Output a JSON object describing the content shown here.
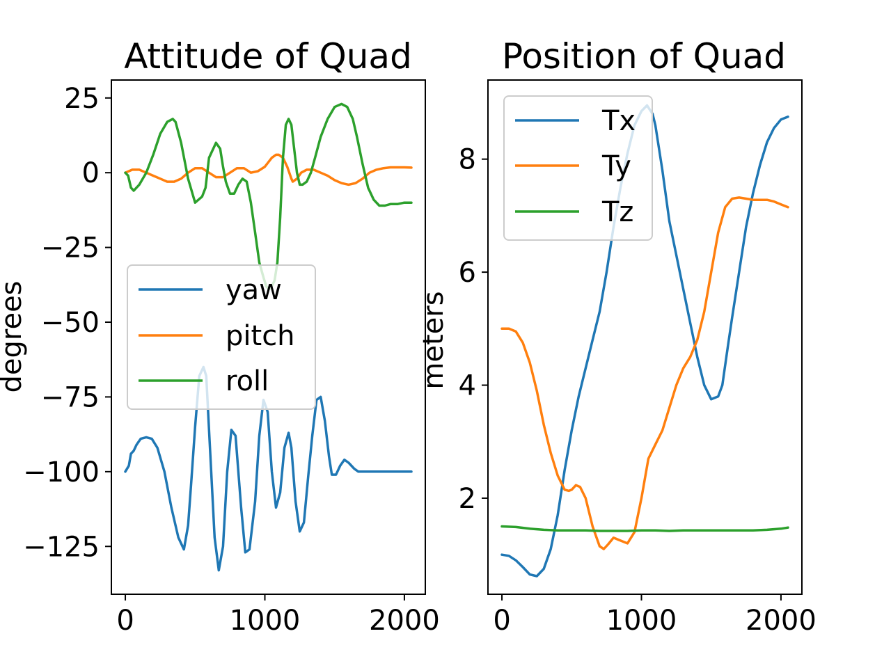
{
  "chart_data": [
    {
      "type": "line",
      "title": "Attitude of Quad",
      "ylabel": "degrees",
      "xlabel": "",
      "xlim": [
        -100,
        2150
      ],
      "ylim": [
        -141,
        31
      ],
      "xticks": [
        0,
        1000,
        2000
      ],
      "yticks": [
        25,
        0,
        -25,
        -50,
        -75,
        -100,
        -125
      ],
      "ytick_labels": [
        "25",
        "0",
        "−25",
        "−50",
        "−75",
        "−100",
        "−125"
      ],
      "legend": "center-left",
      "grid": false,
      "series": [
        {
          "name": "yaw",
          "color": "#1f77b4",
          "x": [
            0,
            25,
            40,
            60,
            80,
            110,
            150,
            190,
            230,
            280,
            330,
            380,
            420,
            450,
            470,
            500,
            530,
            560,
            580,
            610,
            640,
            670,
            700,
            730,
            760,
            790,
            830,
            860,
            890,
            930,
            960,
            990,
            1020,
            1050,
            1080,
            1110,
            1140,
            1170,
            1190,
            1220,
            1250,
            1280,
            1310,
            1340,
            1370,
            1400,
            1430,
            1460,
            1480,
            1510,
            1540,
            1570,
            1600,
            1640,
            1670,
            1700,
            1730,
            1760,
            1790,
            1820,
            1860,
            1900,
            1930,
            1960,
            1990,
            2020,
            2050
          ],
          "y": [
            -100,
            -98,
            -94,
            -93,
            -91,
            -89,
            -88.5,
            -89,
            -92,
            -100,
            -112,
            -122,
            -126,
            -118,
            -105,
            -85,
            -68,
            -65,
            -68,
            -95,
            -122,
            -133,
            -125,
            -100,
            -86,
            -88,
            -112,
            -127,
            -126,
            -110,
            -88,
            -76,
            -80,
            -100,
            -112,
            -107,
            -92,
            -87,
            -92,
            -110,
            -120,
            -117,
            -102,
            -88,
            -76,
            -75,
            -83,
            -95,
            -101,
            -101,
            -98,
            -96,
            -97,
            -99,
            -100,
            -100,
            -100,
            -100,
            -100,
            -100,
            -100,
            -100,
            -100,
            -100,
            -100,
            -100,
            -100
          ]
        },
        {
          "name": "pitch",
          "color": "#ff7f0e",
          "x": [
            0,
            50,
            100,
            150,
            200,
            250,
            300,
            350,
            400,
            450,
            500,
            550,
            600,
            650,
            700,
            750,
            800,
            850,
            900,
            950,
            1000,
            1050,
            1080,
            1100,
            1130,
            1160,
            1190,
            1200,
            1230,
            1260,
            1300,
            1350,
            1400,
            1450,
            1500,
            1550,
            1600,
            1650,
            1700,
            1750,
            1800,
            1850,
            1900,
            1950,
            2000,
            2050
          ],
          "y": [
            0,
            1,
            1,
            0,
            -1,
            -2,
            -3,
            -3,
            -2,
            0,
            1.5,
            1.5,
            0,
            -1.5,
            -1.5,
            0,
            1.5,
            1.5,
            0,
            0.5,
            2,
            5,
            6,
            6,
            5,
            2,
            -2,
            -3,
            -2,
            0,
            1,
            1,
            0,
            -1,
            -2.5,
            -3.5,
            -4,
            -3.5,
            -2,
            0,
            1,
            1.5,
            1.8,
            1.8,
            1.8,
            1.7
          ]
        },
        {
          "name": "roll",
          "color": "#2ca02c",
          "x": [
            0,
            20,
            40,
            60,
            80,
            100,
            150,
            200,
            250,
            300,
            340,
            360,
            400,
            450,
            500,
            550,
            575,
            600,
            650,
            680,
            700,
            720,
            750,
            780,
            810,
            840,
            870,
            900,
            930,
            960,
            990,
            1010,
            1030,
            1050,
            1070,
            1090,
            1110,
            1130,
            1150,
            1170,
            1190,
            1210,
            1230,
            1250,
            1270,
            1300,
            1330,
            1360,
            1400,
            1450,
            1500,
            1550,
            1590,
            1630,
            1660,
            1700,
            1740,
            1780,
            1820,
            1860,
            1900,
            1950,
            2000,
            2050
          ],
          "y": [
            0,
            -1,
            -5,
            -6,
            -5,
            -4,
            0,
            6,
            13,
            17,
            18,
            17,
            10,
            -2,
            -10,
            -8,
            -5,
            5,
            10,
            8,
            2,
            -3,
            -7,
            -7,
            -4,
            -2,
            -3,
            -10,
            -20,
            -30,
            -35,
            -38,
            -39,
            -38,
            -36,
            -30,
            -15,
            5,
            16,
            18,
            16,
            8,
            0,
            -4,
            -4,
            -3,
            0,
            5,
            12,
            18,
            22,
            23,
            22,
            18,
            12,
            3,
            -5,
            -9,
            -11,
            -11,
            -10.5,
            -10.5,
            -10,
            -10
          ]
        }
      ]
    },
    {
      "type": "line",
      "title": "Position of Quad",
      "ylabel": "meters",
      "xlabel": "",
      "xlim": [
        -100,
        2150
      ],
      "ylim": [
        0.3,
        9.4
      ],
      "xticks": [
        0,
        1000,
        2000
      ],
      "yticks": [
        8,
        6,
        4,
        2
      ],
      "ytick_labels": [
        "8",
        "6",
        "4",
        "2"
      ],
      "legend": "top-left",
      "grid": false,
      "series": [
        {
          "name": "Tx",
          "color": "#1f77b4",
          "x": [
            0,
            50,
            100,
            150,
            200,
            250,
            300,
            350,
            400,
            450,
            500,
            550,
            600,
            650,
            700,
            750,
            800,
            850,
            900,
            950,
            1000,
            1040,
            1080,
            1100,
            1150,
            1200,
            1250,
            1300,
            1350,
            1400,
            1450,
            1500,
            1550,
            1580,
            1620,
            1650,
            1700,
            1750,
            1800,
            1850,
            1900,
            1950,
            2000,
            2050
          ],
          "y": [
            1.0,
            0.98,
            0.9,
            0.78,
            0.65,
            0.62,
            0.75,
            1.1,
            1.7,
            2.5,
            3.2,
            3.8,
            4.3,
            4.8,
            5.3,
            6.0,
            6.8,
            7.5,
            8.1,
            8.6,
            8.85,
            8.95,
            8.8,
            8.6,
            7.8,
            6.9,
            6.3,
            5.7,
            5.1,
            4.5,
            4.0,
            3.75,
            3.8,
            4.0,
            4.7,
            5.2,
            6.0,
            6.8,
            7.4,
            7.9,
            8.3,
            8.55,
            8.7,
            8.75
          ]
        },
        {
          "name": "Ty",
          "color": "#ff7f0e",
          "x": [
            0,
            50,
            100,
            150,
            200,
            250,
            300,
            350,
            400,
            450,
            480,
            500,
            530,
            560,
            600,
            650,
            700,
            730,
            760,
            800,
            850,
            900,
            950,
            1000,
            1050,
            1100,
            1150,
            1200,
            1250,
            1300,
            1350,
            1400,
            1450,
            1500,
            1550,
            1600,
            1650,
            1700,
            1750,
            1800,
            1850,
            1900,
            1950,
            2000,
            2050
          ],
          "y": [
            5.0,
            5.0,
            4.95,
            4.75,
            4.4,
            3.9,
            3.3,
            2.8,
            2.4,
            2.15,
            2.13,
            2.15,
            2.23,
            2.2,
            2.0,
            1.5,
            1.15,
            1.1,
            1.18,
            1.3,
            1.25,
            1.2,
            1.4,
            2.0,
            2.7,
            2.95,
            3.2,
            3.6,
            4.0,
            4.3,
            4.5,
            4.8,
            5.3,
            6.0,
            6.7,
            7.15,
            7.3,
            7.32,
            7.3,
            7.28,
            7.28,
            7.28,
            7.25,
            7.2,
            7.15
          ]
        },
        {
          "name": "Tz",
          "color": "#2ca02c",
          "x": [
            0,
            100,
            200,
            300,
            400,
            500,
            600,
            700,
            800,
            900,
            1000,
            1100,
            1200,
            1300,
            1400,
            1500,
            1600,
            1700,
            1800,
            1900,
            2000,
            2050
          ],
          "y": [
            1.5,
            1.49,
            1.46,
            1.44,
            1.43,
            1.43,
            1.43,
            1.42,
            1.42,
            1.42,
            1.43,
            1.43,
            1.42,
            1.43,
            1.43,
            1.43,
            1.43,
            1.43,
            1.43,
            1.44,
            1.46,
            1.48
          ]
        }
      ]
    }
  ]
}
